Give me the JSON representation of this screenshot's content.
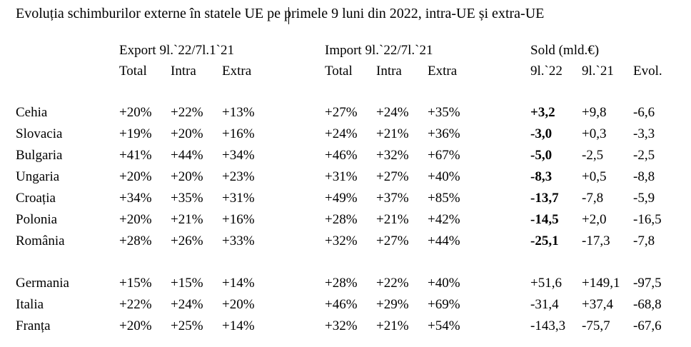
{
  "title": "Evoluția schimburilor externe în statele UE pe primele 9 luni din 2022, intra-UE și extra-UE",
  "groups": {
    "export": "Export 9l.`22/7l.1`21",
    "import": "Import 9l.`22/7l.`21",
    "sold": "Sold (mld.€)"
  },
  "subheaders": {
    "export": [
      "Total",
      "Intra",
      "Extra"
    ],
    "import": [
      "Total",
      "Intra",
      "Extra"
    ],
    "sold": [
      "9l.`22",
      "9l.`21",
      "Evol."
    ]
  },
  "rows": [
    {
      "country": "Cehia",
      "export": [
        "+20%",
        "+22%",
        "+13%"
      ],
      "import": [
        "+27%",
        "+24%",
        "+35%"
      ],
      "sold": [
        "+3,2",
        "+9,8",
        "-6,6"
      ]
    },
    {
      "country": "Slovacia",
      "export": [
        "+19%",
        "+20%",
        "+16%"
      ],
      "import": [
        "+24%",
        "+21%",
        "+36%"
      ],
      "sold": [
        "-3,0",
        "+0,3",
        "-3,3"
      ]
    },
    {
      "country": "Bulgaria",
      "export": [
        "+41%",
        "+44%",
        "+34%"
      ],
      "import": [
        "+46%",
        "+32%",
        "+67%"
      ],
      "sold": [
        "-5,0",
        "-2,5",
        "-2,5"
      ]
    },
    {
      "country": "Ungaria",
      "export": [
        "+20%",
        "+20%",
        "+23%"
      ],
      "import": [
        "+31%",
        "+27%",
        "+40%"
      ],
      "sold": [
        "-8,3",
        "+0,5",
        "-8,8"
      ]
    },
    {
      "country": "Croația",
      "export": [
        "+34%",
        "+35%",
        "+31%"
      ],
      "import": [
        "+49%",
        "+37%",
        "+85%"
      ],
      "sold": [
        "-13,7",
        "-7,8",
        "-5,9"
      ]
    },
    {
      "country": "Polonia",
      "export": [
        "+20%",
        "+21%",
        "+16%"
      ],
      "import": [
        "+28%",
        "+21%",
        "+42%"
      ],
      "sold": [
        "-14,5",
        "+2,0",
        "-16,5"
      ]
    },
    {
      "country": "România",
      "export": [
        "+28%",
        "+26%",
        "+33%"
      ],
      "import": [
        "+32%",
        "+27%",
        "+44%"
      ],
      "sold": [
        "-25,1",
        "-17,3",
        "-7,8"
      ]
    },
    {
      "country": "Germania",
      "export": [
        "+15%",
        "+15%",
        "+14%"
      ],
      "import": [
        "+28%",
        "+22%",
        "+40%"
      ],
      "sold": [
        "+51,6",
        "+149,1",
        "-97,5"
      ]
    },
    {
      "country": "Italia",
      "export": [
        "+22%",
        "+24%",
        "+20%"
      ],
      "import": [
        "+46%",
        "+29%",
        "+69%"
      ],
      "sold": [
        "-31,4",
        "+37,4",
        "-68,8"
      ]
    },
    {
      "country": "Franța",
      "export": [
        "+20%",
        "+25%",
        "+14%"
      ],
      "import": [
        "+32%",
        "+21%",
        "+54%"
      ],
      "sold": [
        "-143,3",
        "-75,7",
        "-67,6"
      ]
    }
  ]
}
